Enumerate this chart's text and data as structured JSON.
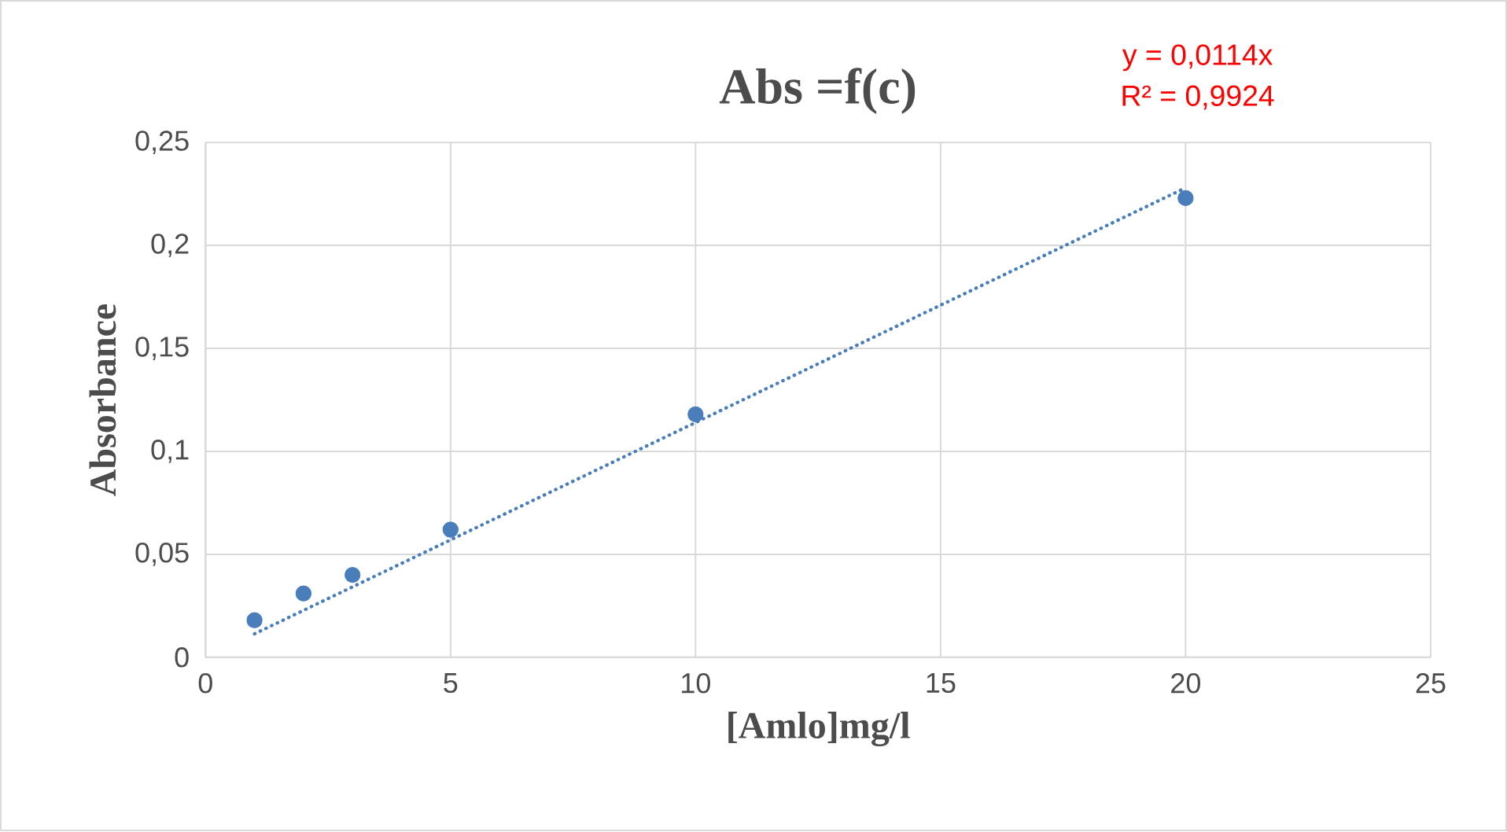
{
  "chart_data": {
    "type": "scatter",
    "title": "Abs =f(c)",
    "xlabel": "[Amlo]mg/l",
    "ylabel": "Absorbance",
    "annotations": [
      "y = 0,0114x",
      "R² = 0,9924"
    ],
    "xlim": [
      0,
      25
    ],
    "xticks": [
      0,
      5,
      10,
      15,
      20,
      25
    ],
    "ylim": [
      0,
      0.25
    ],
    "yticks": [
      0,
      {
        "value": 0.05,
        "label": "0,05"
      },
      {
        "value": 0.1,
        "label": "0,1"
      },
      {
        "value": 0.15,
        "label": "0,15"
      },
      {
        "value": 0.2,
        "label": "0,2"
      },
      {
        "value": 0.25,
        "label": "0,25"
      }
    ],
    "grid": true,
    "series": [
      {
        "color": "#4a7ebb",
        "marker": "circle",
        "x": [
          1,
          2,
          3,
          5,
          10,
          20
        ],
        "values": [
          0.018,
          0.031,
          0.04,
          0.062,
          0.118,
          0.223
        ]
      },
      {
        "type": "line",
        "color": "#4a7ebb",
        "line_style": "dotted",
        "marker": "none",
        "x": [
          1,
          20
        ],
        "values": [
          0.0114,
          0.228
        ]
      }
    ]
  }
}
